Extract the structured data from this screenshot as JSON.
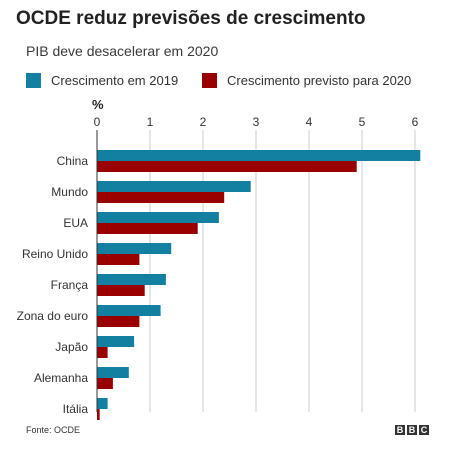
{
  "title": "OCDE reduz previsões de crescimento",
  "subtitle": "PIB deve desacelerar em 2020",
  "legend": [
    {
      "label": "Crescimento em 2019",
      "color": "#1380a1"
    },
    {
      "label": "Crescimento previsto para 2020",
      "color": "#990000"
    }
  ],
  "unit_label": "%",
  "source": "Fonte: OCDE",
  "brand": [
    "B",
    "B",
    "C"
  ],
  "chart_data": {
    "type": "bar",
    "orientation": "horizontal",
    "title": "OCDE reduz previsões de crescimento",
    "subtitle": "PIB deve desacelerar em 2020",
    "xlabel": "%",
    "ylabel": "",
    "xlim": [
      0,
      6
    ],
    "xticks": [
      0,
      1,
      2,
      3,
      4,
      5,
      6
    ],
    "grid": true,
    "legend_position": "top",
    "categories": [
      "China",
      "Mundo",
      "EUA",
      "Reino Unido",
      "França",
      "Zona do euro",
      "Japão",
      "Alemanha",
      "Itália"
    ],
    "series": [
      {
        "name": "Crescimento em 2019",
        "color": "#1380a1",
        "values": [
          6.1,
          2.9,
          2.3,
          1.4,
          1.3,
          1.2,
          0.7,
          0.6,
          0.2
        ]
      },
      {
        "name": "Crescimento previsto para 2020",
        "color": "#990000",
        "values": [
          4.9,
          2.4,
          1.9,
          0.8,
          0.9,
          0.8,
          0.2,
          0.3,
          0.05
        ]
      }
    ]
  }
}
